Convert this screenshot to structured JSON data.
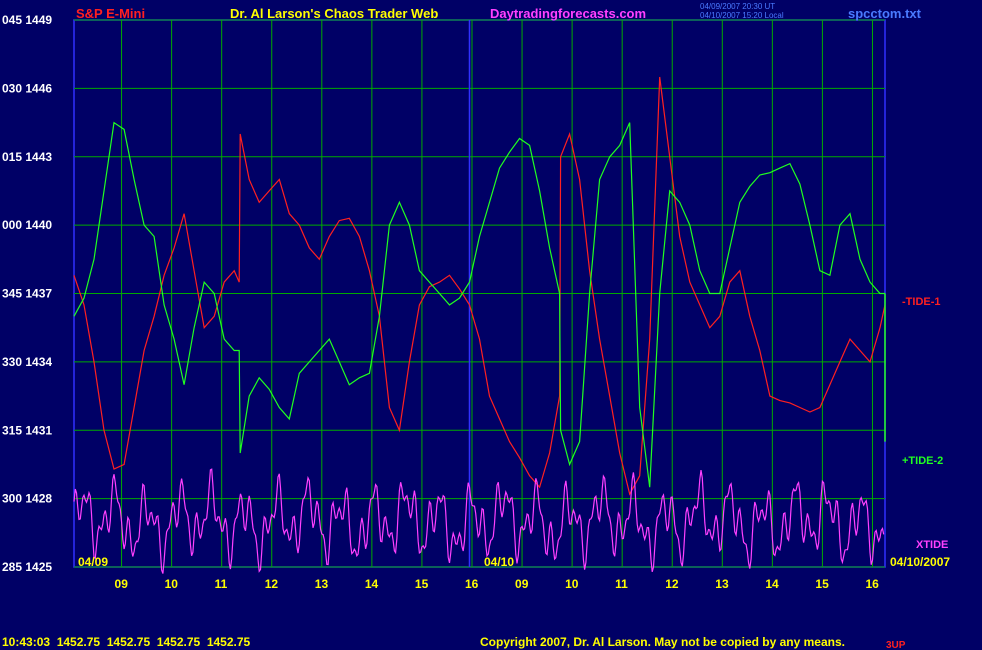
{
  "header": {
    "instrument": "S&P E-Mini",
    "title": "Dr. Al Larson's Chaos Trader Web",
    "site": "Daytradingforecasts.com",
    "stamp_line1": "04/09/2007 20:30 UT",
    "stamp_line2": "04/10/2007 15:20 Local",
    "filename": "spcctom.txt"
  },
  "footer": {
    "quote": "10:43:03  1452.75  1452.75  1452.75  1452.75",
    "copyright": "Copyright 2007, Dr. Al Larson. May not be copied by any means.",
    "overlap_text": "3UP"
  },
  "colors": {
    "background": "#000066",
    "grid": "#00aa00",
    "tide1": "#ff2020",
    "tide2": "#20ff20",
    "xtide": "#ff40ff",
    "date_divider": "#3030ff"
  },
  "chart_data": {
    "type": "line",
    "y_ticks": [
      {
        "degree": "285",
        "price": "1425"
      },
      {
        "degree": "300",
        "price": "1428"
      },
      {
        "degree": "315",
        "price": "1431"
      },
      {
        "degree": "330",
        "price": "1434"
      },
      {
        "degree": "345",
        "price": "1437"
      },
      {
        "degree": "000",
        "price": "1440"
      },
      {
        "degree": "015",
        "price": "1443"
      },
      {
        "degree": "030",
        "price": "1446"
      },
      {
        "degree": "045",
        "price": "1449"
      }
    ],
    "ylim": [
      1425,
      1449
    ],
    "x_ticks": [
      "09",
      "10",
      "11",
      "12",
      "13",
      "14",
      "15",
      "16",
      "09",
      "10",
      "11",
      "12",
      "13",
      "14",
      "15",
      "16"
    ],
    "date_labels": [
      "04/09",
      "04/10",
      "04/10/2007"
    ],
    "xlim": [
      0,
      16.2
    ],
    "series": [
      {
        "name": "-TIDE-1",
        "x": [
          0,
          0.2,
          0.4,
          0.6,
          0.8,
          1.0,
          1.2,
          1.4,
          1.6,
          1.8,
          2.0,
          2.2,
          2.4,
          2.6,
          2.8,
          3.0,
          3.2,
          3.3,
          3.32,
          3.5,
          3.7,
          3.9,
          4.1,
          4.3,
          4.5,
          4.7,
          4.9,
          5.1,
          5.3,
          5.5,
          5.7,
          5.9,
          6.1,
          6.3,
          6.5,
          6.7,
          6.9,
          7.1,
          7.3,
          7.5,
          7.7,
          7.9,
          8.1,
          8.3,
          8.5,
          8.7,
          8.9,
          9.1,
          9.3,
          9.5,
          9.7,
          9.72,
          9.9,
          10.1,
          10.3,
          10.5,
          10.7,
          10.9,
          11.1,
          11.3,
          11.5,
          11.7,
          11.9,
          12.1,
          12.3,
          12.5,
          12.7,
          12.9,
          13.1,
          13.3,
          13.5,
          13.7,
          13.9,
          14.1,
          14.3,
          14.5,
          14.7,
          14.9,
          15.1,
          15.3,
          15.5,
          15.7,
          15.9,
          16.1,
          16.2
        ],
        "values": [
          1437.8,
          1436.5,
          1434.0,
          1431.0,
          1429.3,
          1429.5,
          1432.0,
          1434.5,
          1436.0,
          1437.8,
          1439.0,
          1440.5,
          1438.0,
          1435.5,
          1436.0,
          1437.5,
          1438.0,
          1437.5,
          1444.0,
          1442.0,
          1441.0,
          1441.5,
          1442.0,
          1440.5,
          1440.0,
          1439.0,
          1438.5,
          1439.5,
          1440.2,
          1440.3,
          1439.5,
          1438.0,
          1436.0,
          1432.0,
          1431.0,
          1434.0,
          1436.5,
          1437.3,
          1437.5,
          1437.8,
          1437.2,
          1436.5,
          1435.0,
          1432.5,
          1431.5,
          1430.5,
          1429.8,
          1429.0,
          1428.5,
          1430.0,
          1432.5,
          1443.0,
          1444.0,
          1442.0,
          1438.0,
          1435.0,
          1432.5,
          1430.0,
          1428.2,
          1429.0,
          1435.0,
          1446.5,
          1443.0,
          1439.5,
          1437.5,
          1436.5,
          1435.5,
          1436.0,
          1437.5,
          1438.0,
          1436.0,
          1434.5,
          1432.5,
          1432.3,
          1432.2,
          1432.0,
          1431.8,
          1432.0,
          1433.0,
          1434.0,
          1435.0,
          1434.5,
          1434.0,
          1435.5,
          1436.5
        ]
      },
      {
        "name": "+TIDE-2",
        "x": [
          0,
          0.2,
          0.4,
          0.6,
          0.8,
          1.0,
          1.2,
          1.4,
          1.6,
          1.8,
          2.0,
          2.2,
          2.4,
          2.6,
          2.8,
          3.0,
          3.2,
          3.3,
          3.32,
          3.5,
          3.7,
          3.9,
          4.1,
          4.3,
          4.5,
          4.7,
          4.9,
          5.1,
          5.3,
          5.5,
          5.7,
          5.9,
          6.1,
          6.3,
          6.5,
          6.7,
          6.9,
          7.1,
          7.3,
          7.5,
          7.7,
          7.9,
          8.1,
          8.3,
          8.5,
          8.7,
          8.9,
          9.1,
          9.3,
          9.5,
          9.7,
          9.72,
          9.9,
          10.1,
          10.3,
          10.5,
          10.7,
          10.9,
          11.1,
          11.3,
          11.5,
          11.7,
          11.9,
          12.1,
          12.3,
          12.5,
          12.7,
          12.9,
          13.1,
          13.3,
          13.5,
          13.7,
          13.9,
          14.1,
          14.3,
          14.5,
          14.7,
          14.9,
          15.1,
          15.3,
          15.5,
          15.7,
          15.9,
          16.1,
          16.2
        ],
        "values": [
          1436.0,
          1436.8,
          1438.5,
          1441.5,
          1444.5,
          1444.2,
          1442.0,
          1440.0,
          1439.5,
          1436.5,
          1435.0,
          1433.0,
          1435.5,
          1437.5,
          1437.0,
          1435.0,
          1434.5,
          1434.5,
          1430.0,
          1432.5,
          1433.3,
          1432.8,
          1432.0,
          1431.5,
          1433.5,
          1434.0,
          1434.5,
          1435.0,
          1434.0,
          1433.0,
          1433.3,
          1433.5,
          1436.0,
          1440.0,
          1441.0,
          1440.0,
          1438.0,
          1437.5,
          1437.0,
          1436.5,
          1436.8,
          1437.5,
          1439.5,
          1441.0,
          1442.5,
          1443.2,
          1443.8,
          1443.5,
          1441.5,
          1439.0,
          1437.0,
          1431.0,
          1429.5,
          1430.5,
          1437.0,
          1442.0,
          1443.0,
          1443.5,
          1444.5,
          1432.0,
          1428.5,
          1437.0,
          1441.5,
          1441.0,
          1440.0,
          1438.0,
          1437.0,
          1437.0,
          1439.0,
          1441.0,
          1441.7,
          1442.2,
          1442.3,
          1442.5,
          1442.7,
          1441.8,
          1440.0,
          1438.0,
          1437.8,
          1440.0,
          1440.5,
          1438.5,
          1437.5,
          1437.0,
          1437.0
        ]
      },
      {
        "name": "XTIDE",
        "x": [],
        "values": []
      }
    ]
  }
}
